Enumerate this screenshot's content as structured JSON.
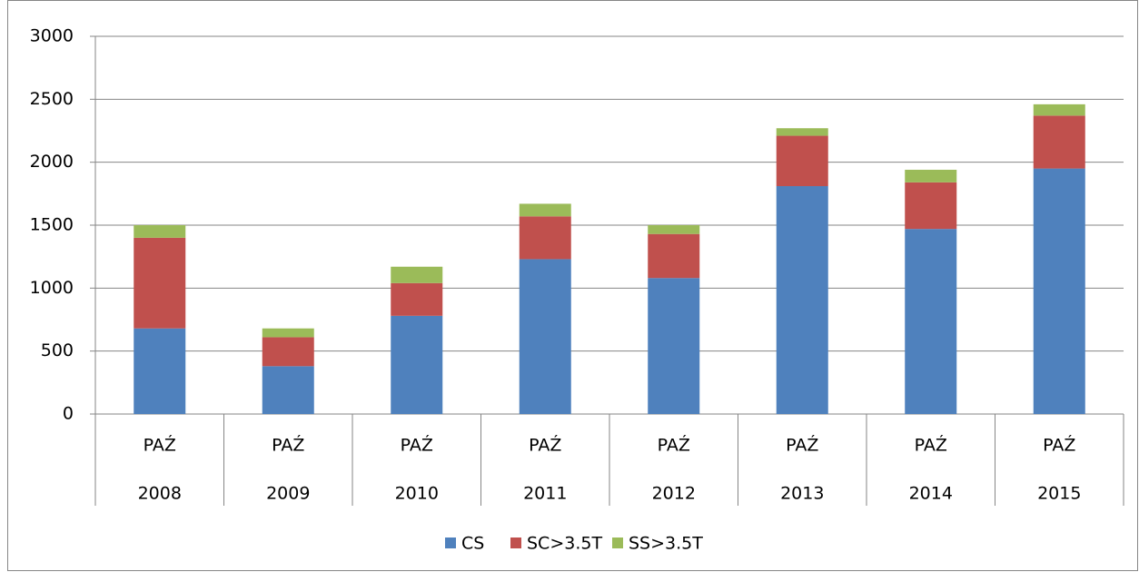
{
  "chart_data": {
    "type": "stacked_bar",
    "categories": [
      [
        "PAŹ",
        "2008"
      ],
      [
        "PAŹ",
        "2009"
      ],
      [
        "PAŹ",
        "2010"
      ],
      [
        "PAŹ",
        "2011"
      ],
      [
        "PAŹ",
        "2012"
      ],
      [
        "PAŹ",
        "2013"
      ],
      [
        "PAŹ",
        "2014"
      ],
      [
        "PAŹ",
        "2015"
      ]
    ],
    "series": [
      {
        "name": "CS",
        "color": "#4f81bd",
        "values": [
          680,
          380,
          780,
          1230,
          1080,
          1810,
          1470,
          1950
        ]
      },
      {
        "name": "SC>3.5T",
        "color": "#c0504d",
        "values": [
          720,
          230,
          260,
          340,
          350,
          400,
          370,
          420
        ]
      },
      {
        "name": "SS>3.5T",
        "color": "#9bbb59",
        "values": [
          100,
          70,
          130,
          100,
          70,
          60,
          100,
          90
        ]
      }
    ],
    "ylim": [
      0,
      3000
    ],
    "yticks": [
      0,
      500,
      1000,
      1500,
      2000,
      2500,
      3000
    ],
    "grid": true,
    "legend": "bottom"
  }
}
